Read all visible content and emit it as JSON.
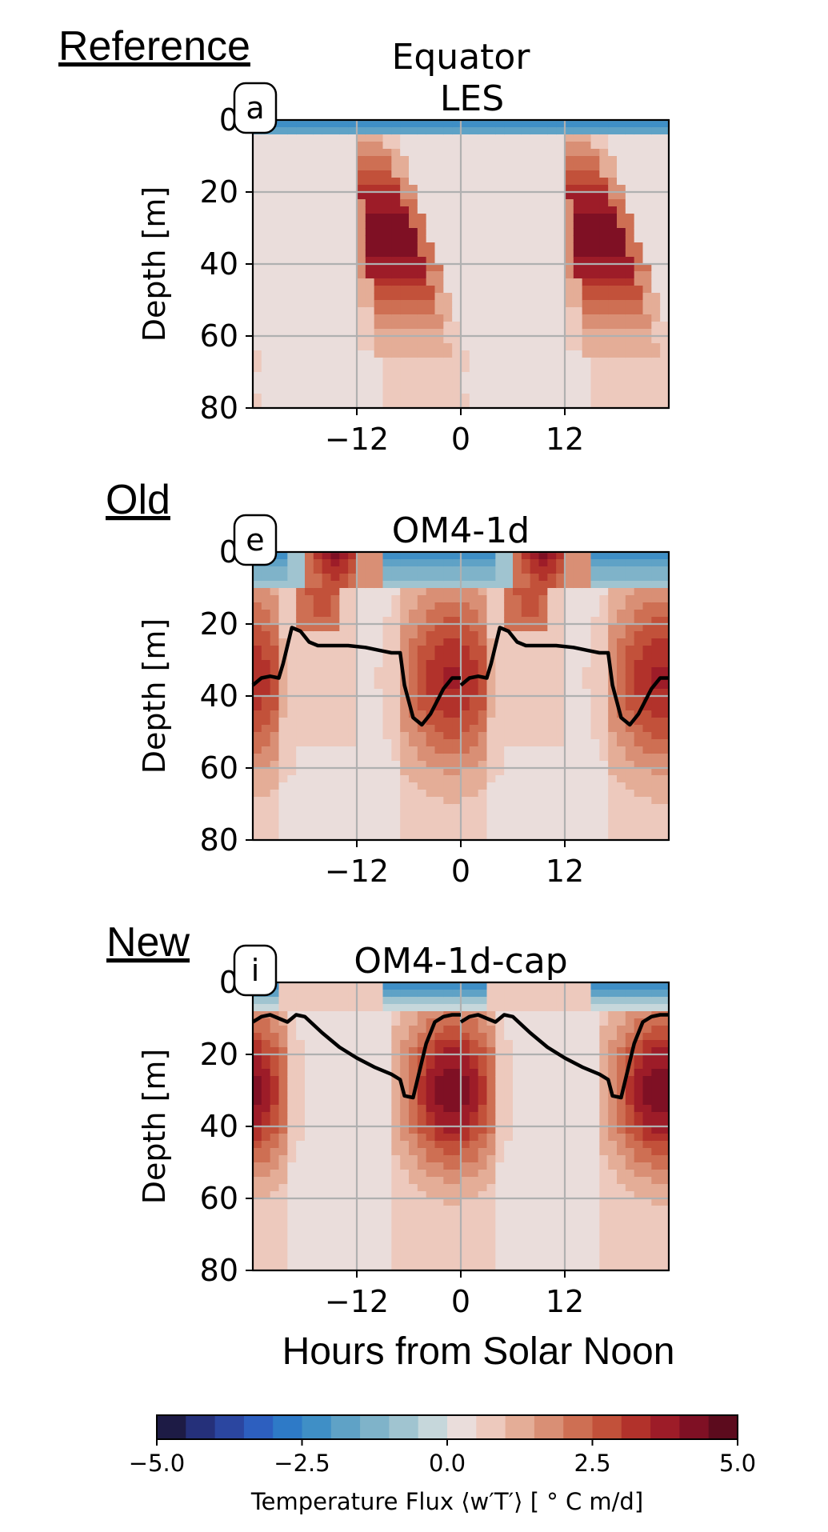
{
  "figure": {
    "xlabel": "Hours from Solar Noon",
    "sections": [
      "Reference",
      "Old",
      "New"
    ]
  },
  "chart_data": [
    {
      "type": "heatmap",
      "section": "Reference",
      "panel_label": "a",
      "title_lines": [
        "Equator",
        "LES"
      ],
      "ylabel": "Depth [m]",
      "xlabel": "",
      "x_ticks": [
        "−12",
        "0",
        "12"
      ],
      "x_tick_values": [
        -12,
        0,
        12
      ],
      "y_ticks": [
        "0",
        "20",
        "40",
        "60",
        "80"
      ],
      "y_tick_values": [
        0,
        20,
        40,
        60,
        80
      ],
      "xlim": [
        -24,
        24
      ],
      "ylim": [
        80,
        0
      ],
      "grid": true,
      "pattern": "les",
      "mld_line": null
    },
    {
      "type": "heatmap",
      "section": "Old",
      "panel_label": "e",
      "title_lines": [
        "OM4-1d"
      ],
      "ylabel": "Depth [m]",
      "xlabel": "",
      "x_ticks": [
        "−12",
        "0",
        "12"
      ],
      "x_tick_values": [
        -12,
        0,
        12
      ],
      "y_ticks": [
        "0",
        "20",
        "40",
        "60",
        "80"
      ],
      "y_tick_values": [
        0,
        20,
        40,
        60,
        80
      ],
      "xlim": [
        -24,
        24
      ],
      "ylim": [
        80,
        0
      ],
      "grid": true,
      "pattern": "old",
      "mld_line": {
        "x": [
          -24,
          -23,
          -22,
          -21,
          -20.5,
          -19.5,
          -18.5,
          -17.5,
          -16.5,
          -15,
          -13,
          -11,
          -9,
          -8,
          -7,
          -6.5,
          -5.5,
          -4.5,
          -3.5,
          -2,
          -1,
          0
        ],
        "y": [
          37,
          35,
          34.5,
          35,
          31,
          21,
          22,
          25,
          26,
          26,
          26,
          26.5,
          27.5,
          28,
          28,
          37,
          46,
          48,
          45,
          38,
          35,
          35
        ]
      }
    },
    {
      "type": "heatmap",
      "section": "New",
      "panel_label": "i",
      "title_lines": [
        "OM4-1d-cap"
      ],
      "ylabel": "Depth [m]",
      "xlabel": "",
      "x_ticks": [
        "−12",
        "0",
        "12"
      ],
      "x_tick_values": [
        -12,
        0,
        12
      ],
      "y_ticks": [
        "0",
        "20",
        "40",
        "60",
        "80"
      ],
      "y_tick_values": [
        0,
        20,
        40,
        60,
        80
      ],
      "xlim": [
        -24,
        24
      ],
      "ylim": [
        80,
        0
      ],
      "grid": true,
      "pattern": "new",
      "mld_line": {
        "x": [
          -24,
          -23,
          -22,
          -21,
          -20,
          -19,
          -18,
          -16,
          -14,
          -12,
          -10,
          -8,
          -7,
          -6.5,
          -5.5,
          -5,
          -4,
          -3,
          -2,
          -1,
          0
        ],
        "y": [
          11,
          9.5,
          9,
          10,
          11,
          9,
          9.5,
          14,
          18,
          21,
          23.5,
          25.5,
          27,
          31.5,
          32,
          27,
          17,
          11,
          9.5,
          9,
          9
        ]
      }
    }
  ],
  "colorbar": {
    "label": "Temperature Flux ⟨w′T′⟩  [$^\\circ$C m/d]",
    "label_display": "Temperature Flux ⟨w′T′⟩  [ ° C m/d]",
    "min": -5.0,
    "max": 5.0,
    "levels": 20,
    "ticks": [
      "−5.0",
      "−2.5",
      "0.0",
      "2.5",
      "5.0"
    ],
    "tick_values": [
      -5.0,
      -2.5,
      0.0,
      2.5,
      5.0
    ],
    "colors": [
      "#1d1b45",
      "#25307a",
      "#2b46a0",
      "#2d5fbf",
      "#2e7ac7",
      "#3f8fc6",
      "#5fa2c6",
      "#7fb3c9",
      "#a0c4d0",
      "#c6d7db",
      "#eadddb",
      "#edc9bd",
      "#e4ad97",
      "#d98f75",
      "#ce6f53",
      "#c2513a",
      "#b2322b",
      "#9d1c28",
      "#7f1024",
      "#5c0b1d"
    ]
  }
}
